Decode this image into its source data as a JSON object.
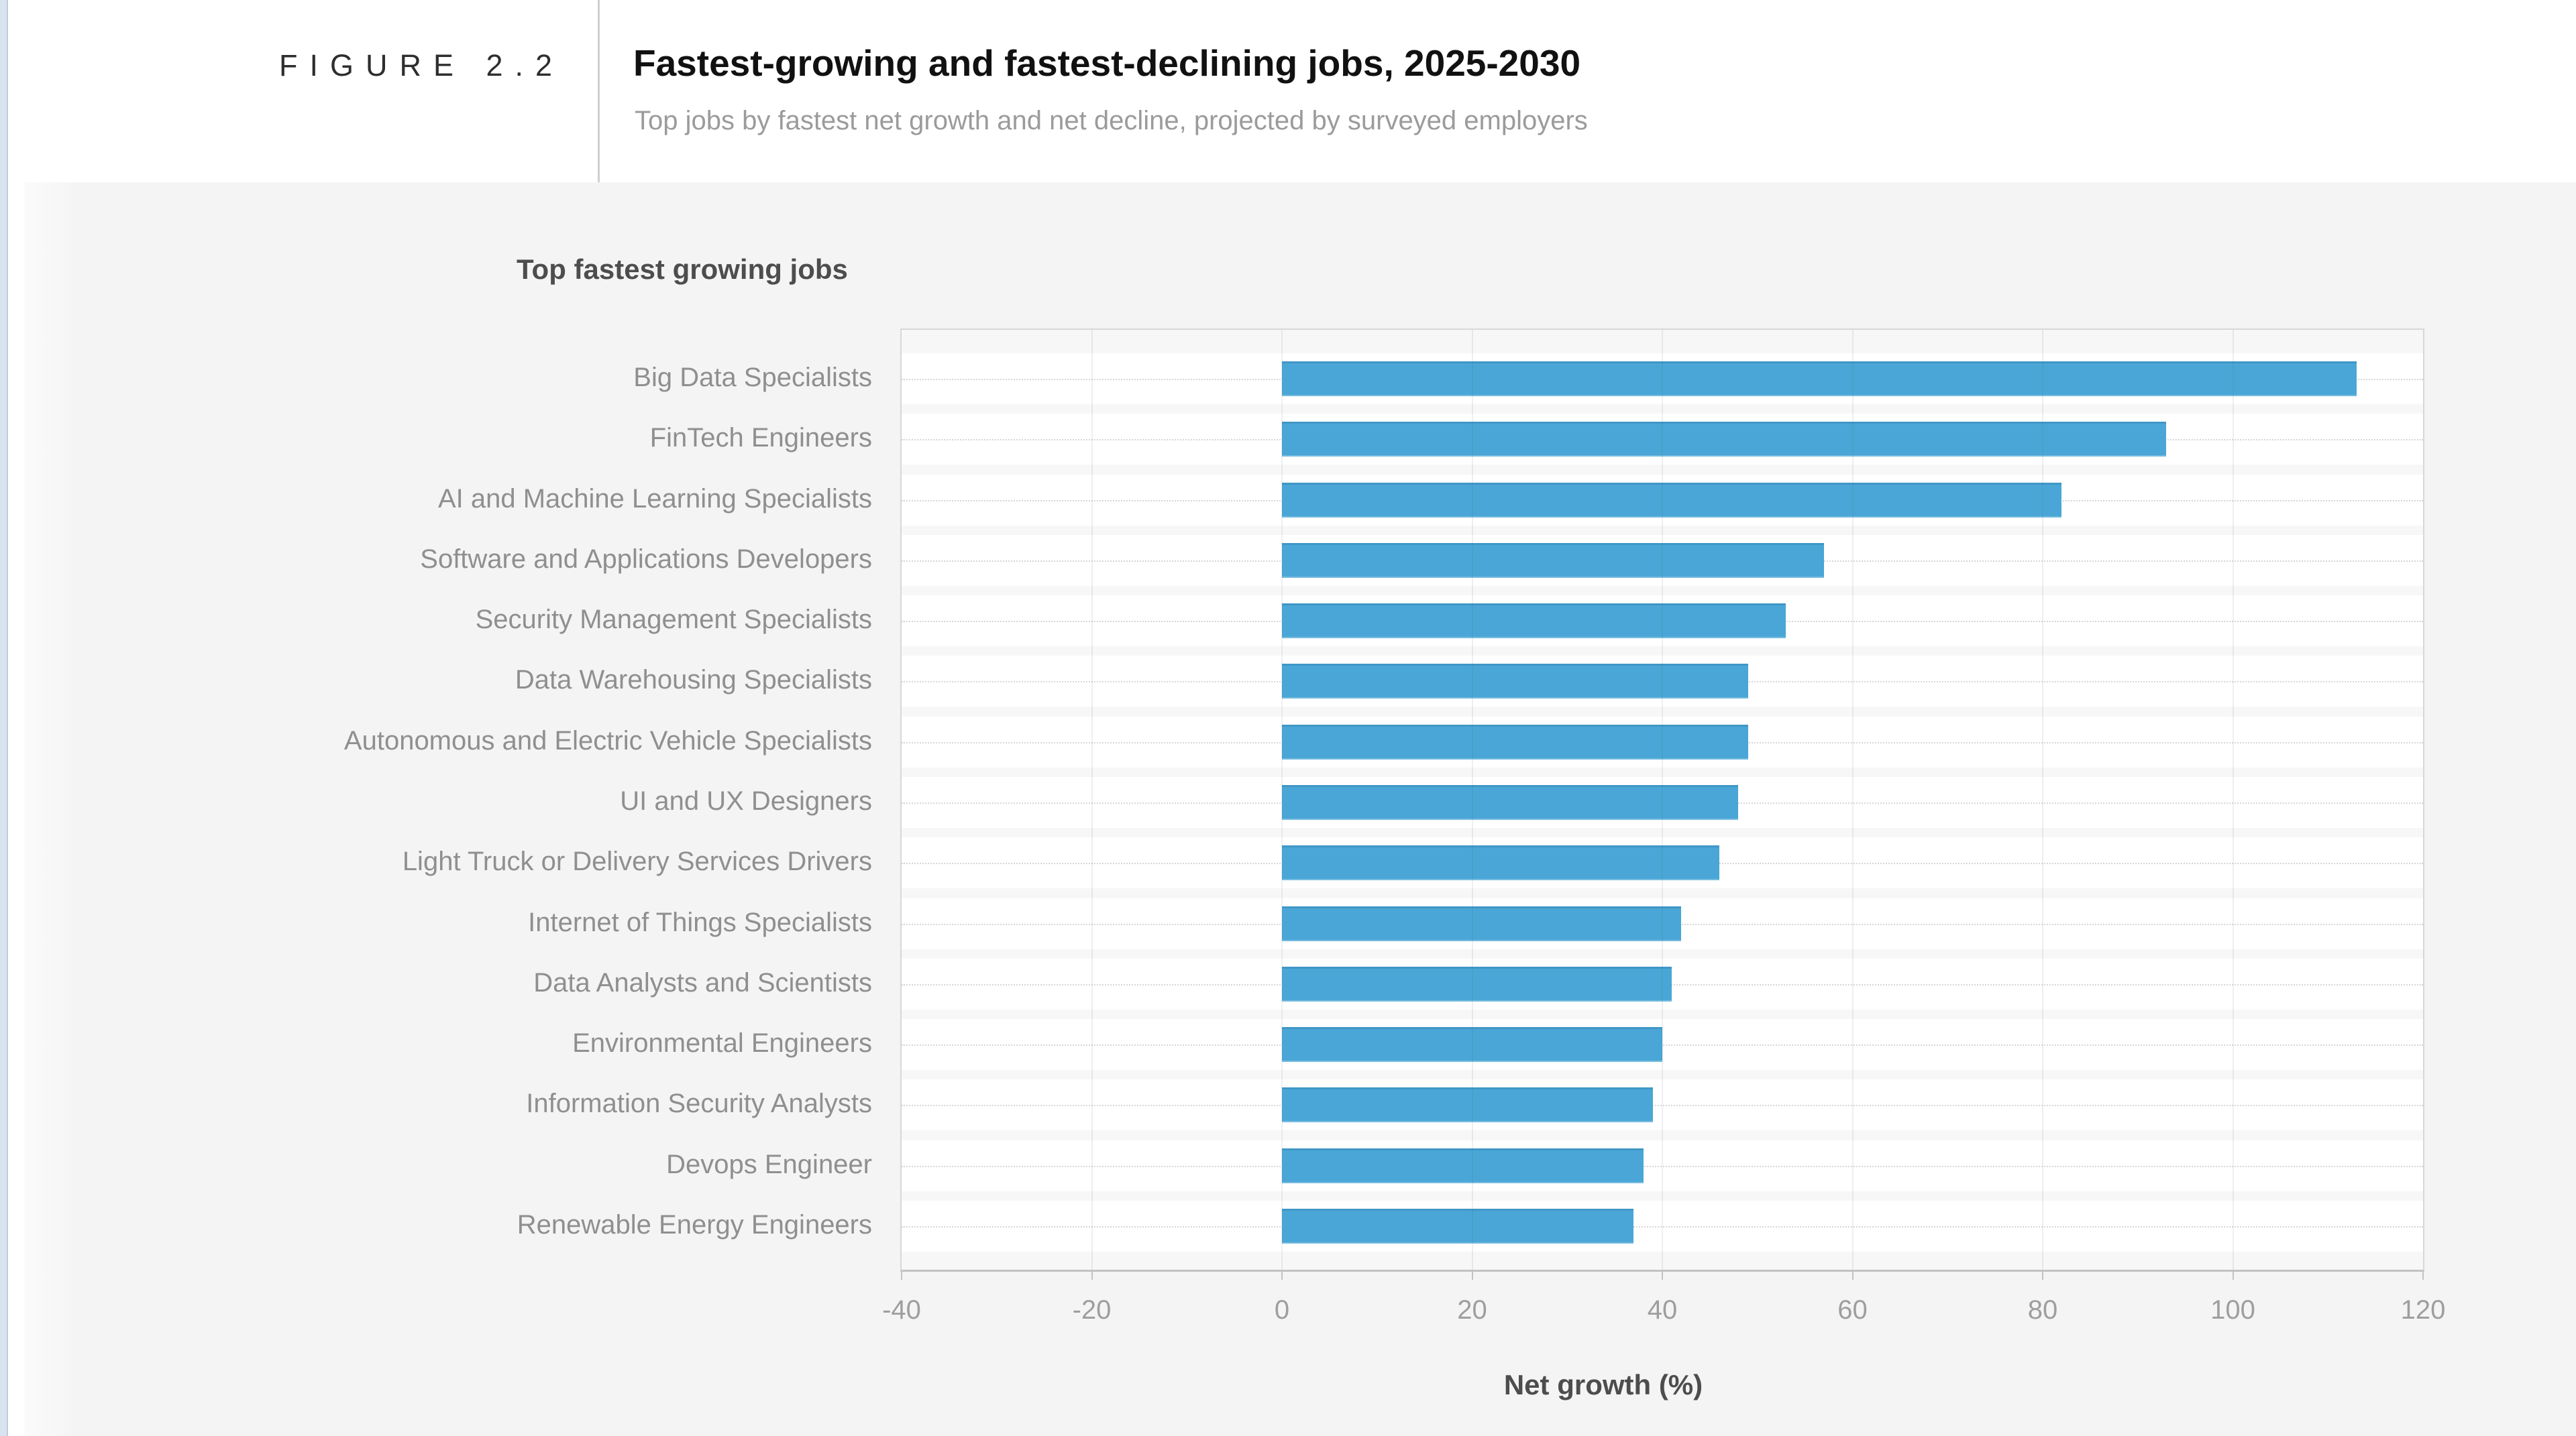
{
  "page": {
    "figure_label": "FIGURE 2.2",
    "title": "Fastest-growing and fastest-declining jobs, 2025-2030",
    "subtitle": "Top jobs by fastest net growth and net decline, projected by surveyed employers"
  },
  "chart_data": {
    "type": "bar",
    "orientation": "horizontal",
    "panel_title": "Top fastest growing jobs",
    "xlabel": "Net growth (%)",
    "xlim": [
      -40,
      120
    ],
    "xticks": [
      -40,
      -20,
      0,
      20,
      40,
      60,
      80,
      100,
      120
    ],
    "grid": true,
    "legend": false,
    "bar_color": "#4AA6D6",
    "categories": [
      "Big Data Specialists",
      "FinTech Engineers",
      "AI and Machine Learning Specialists",
      "Software and Applications Developers",
      "Security Management Specialists",
      "Data Warehousing Specialists",
      "Autonomous and Electric Vehicle Specialists",
      "UI and UX Designers",
      "Light Truck or Delivery Services Drivers",
      "Internet of Things Specialists",
      "Data Analysts and Scientists",
      "Environmental Engineers",
      "Information Security Analysts",
      "Devops Engineer",
      "Renewable Energy Engineers"
    ],
    "values": [
      113,
      93,
      82,
      57,
      53,
      49,
      49,
      48,
      46,
      42,
      41,
      40,
      39,
      38,
      37
    ]
  }
}
